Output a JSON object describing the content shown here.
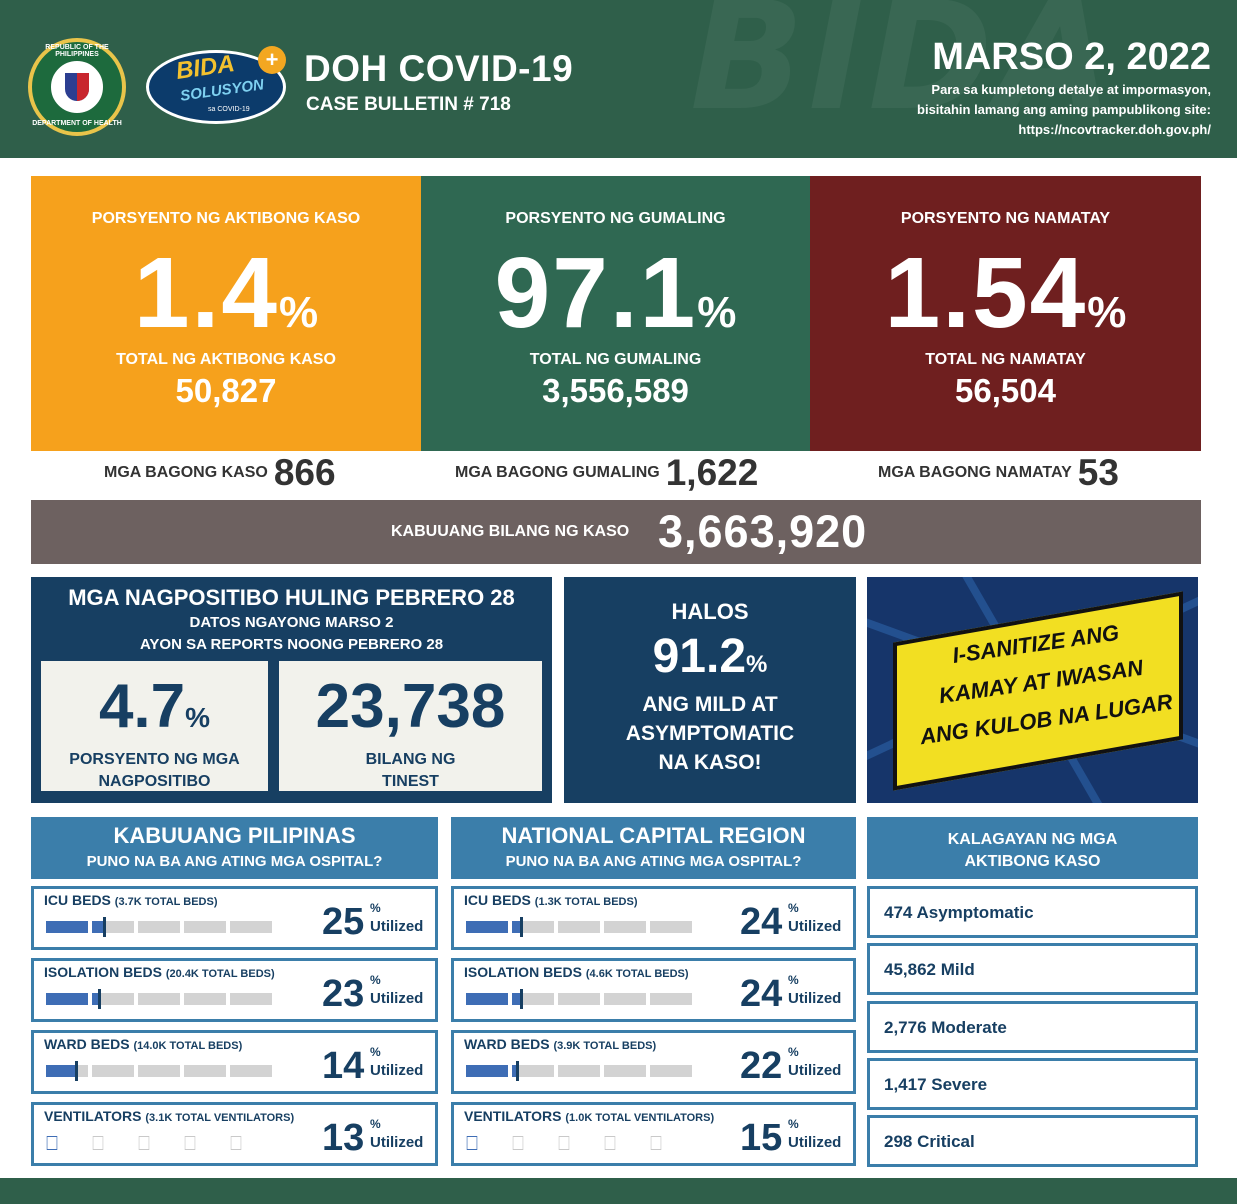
{
  "header": {
    "seal_top": "REPUBLIC OF THE PHILIPPINES",
    "seal_bottom": "DEPARTMENT OF HEALTH",
    "logo_bida": "BIDA",
    "logo_solusyon": "SOLUSYON",
    "logo_covid": "sa COVID-19",
    "title": "DOH COVID-19",
    "bulletin": "CASE BULLETIN # 718",
    "date": "MARSO 2, 2022",
    "sub1": "Para sa kumpletong detalye at impormasyon,",
    "sub2": "bisitahin lamang ang aming pampublikong site:",
    "sub3": "https://ncovtracker.doh.gov.ph/",
    "watermark": "BIDA"
  },
  "cards": {
    "active": {
      "label": "PORSYENTO NG AKTIBONG KASO",
      "value": "1.4",
      "pct": "%",
      "total_label": "TOTAL NG AKTIBONG KASO",
      "total": "50,827",
      "color": "#f6a11c"
    },
    "recovered": {
      "label": "PORSYENTO NG GUMALING",
      "value": "97.1",
      "pct": "%",
      "total_label": "TOTAL NG GUMALING",
      "total": "3,556,589",
      "color": "#2f6852"
    },
    "deaths": {
      "label": "PORSYENTO NG NAMATAY",
      "value": "1.54",
      "pct": "%",
      "total_label": "TOTAL NG NAMATAY",
      "total": "56,504",
      "color": "#6f1f1f"
    }
  },
  "new": {
    "cases_label": "MGA BAGONG KASO",
    "cases": "866",
    "rec_label": "MGA BAGONG GUMALING",
    "rec": "1,622",
    "deaths_label": "MGA BAGONG NAMATAY",
    "deaths": "53"
  },
  "total": {
    "label": "KABUUANG BILANG NG KASO",
    "value": "3,663,920"
  },
  "positivity": {
    "title": "MGA NAGPOSITIBO HULING PEBRERO 28",
    "line2": "DATOS NGAYONG MARSO 2",
    "line3": "AYON SA REPORTS NOONG PEBRERO 28",
    "rate": "4.7",
    "rate_pct": "%",
    "rate_label1": "PORSYENTO NG MGA",
    "rate_label2": "NAGPOSITIBO",
    "tests": "23,738",
    "tests_label1": "BILANG NG",
    "tests_label2": "TINEST"
  },
  "mild": {
    "halos": "HALOS",
    "value": "91.2",
    "pct": "%",
    "l1": "ANG MILD AT",
    "l2": "ASYMPTOMATIC",
    "l3": "NA KASO!"
  },
  "sanitize": {
    "l1": "I-SANITIZE ANG",
    "l2": "KAMAY AT IWASAN",
    "l3": "ANG KULOB NA LUGAR"
  },
  "philippines": {
    "title": "KABUUANG PILIPINAS",
    "subtitle": "PUNO NA BA ANG ATING MGA OSPITAL?",
    "beds": [
      {
        "name": "ICU BEDS",
        "sub": "(3.7K TOTAL BEDS)",
        "value": 25,
        "pct": "%",
        "util": "Utilized"
      },
      {
        "name": "ISOLATION BEDS",
        "sub": "(20.4K TOTAL BEDS)",
        "value": 23,
        "pct": "%",
        "util": "Utilized"
      },
      {
        "name": "WARD BEDS",
        "sub": "(14.0K TOTAL BEDS)",
        "value": 14,
        "pct": "%",
        "util": "Utilized"
      },
      {
        "name": "VENTILATORS",
        "sub": "(3.1K TOTAL VENTILATORS)",
        "value": 13,
        "pct": "%",
        "util": "Utilized"
      }
    ]
  },
  "ncr": {
    "title": "NATIONAL CAPITAL REGION",
    "subtitle": "PUNO NA BA ANG ATING MGA OSPITAL?",
    "beds": [
      {
        "name": "ICU BEDS",
        "sub": "(1.3K TOTAL BEDS)",
        "value": 24,
        "pct": "%",
        "util": "Utilized"
      },
      {
        "name": "ISOLATION BEDS",
        "sub": "(4.6K TOTAL BEDS)",
        "value": 24,
        "pct": "%",
        "util": "Utilized"
      },
      {
        "name": "WARD BEDS",
        "sub": "(3.9K TOTAL BEDS)",
        "value": 22,
        "pct": "%",
        "util": "Utilized"
      },
      {
        "name": "VENTILATORS",
        "sub": "(1.0K TOTAL VENTILATORS)",
        "value": 15,
        "pct": "%",
        "util": "Utilized"
      }
    ]
  },
  "active_status": {
    "title1": "KALAGAYAN NG MGA",
    "title2": "AKTIBONG KASO",
    "items": [
      "474 Asymptomatic",
      "45,862 Mild",
      "2,776 Moderate",
      "1,417 Severe",
      "298 Critical"
    ]
  },
  "colors": {
    "header": "#2f5f4a",
    "navy": "#173f62",
    "blue": "#3b7eaa",
    "bar_fill": "#3e6db5"
  },
  "icons": {
    "ventilator": "ventilator-icon"
  }
}
